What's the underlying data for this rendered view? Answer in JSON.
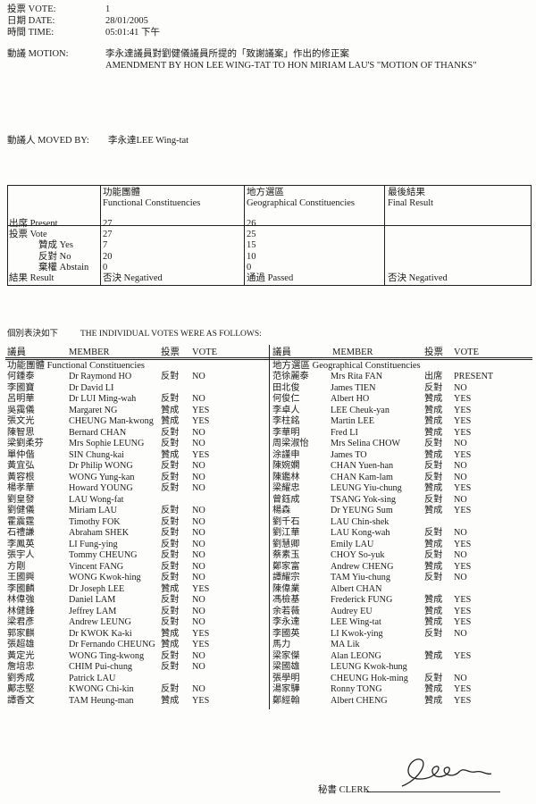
{
  "header": {
    "vote_label": "投票 VOTE:",
    "vote_value": "1",
    "date_label": "日期 DATE:",
    "date_value": "28/01/2005",
    "time_label": "時間 TIME:",
    "time_value": "05:01:41 下午",
    "motion_label": "動議 MOTION:",
    "motion_zh": "李永達議員對劉健儀議員所提的「致謝議案」作出的修正案",
    "motion_en": "AMENDMENT BY HON LEE WING-TAT TO HON MIRIAM LAU'S \"MOTION OF THANKS\"",
    "moved_by_label": "動議人 MOVED BY:",
    "moved_by_value": "李永達LEE Wing-tat"
  },
  "summary": {
    "col_fc_zh": "功能團體",
    "col_fc_en": "Functional Constituencies",
    "col_gc_zh": "地方選區",
    "col_gc_en": "Geographical Constituencies",
    "col_final_zh": "最後結果",
    "col_final_en": "Final Result",
    "row_labels": [
      "出席 Present",
      "投票 Vote",
      "贊成 Yes",
      "反對 No",
      "棄權 Abstain",
      "結果 Result"
    ],
    "fc": [
      "27",
      "27",
      "7",
      "20",
      "0",
      "否決 Negatived"
    ],
    "gc": [
      "26",
      "25",
      "15",
      "10",
      "0",
      "通過 Passed"
    ],
    "final": "否決 Negatived"
  },
  "individual": {
    "title_zh": "個別表決如下",
    "title_en": "THE INDIVIDUAL VOTES WERE AS FOLLOWS:",
    "headers": {
      "member_zh": "議員",
      "member_en": "MEMBER",
      "vote_zh": "投票",
      "vote_en": "VOTE"
    },
    "fc_section": "功能團體 Functional Constituencies",
    "gc_section": "地方選區 Geographical Constituencies",
    "fc_rows": [
      [
        "何鍾泰",
        "Dr Raymond HO",
        "反對",
        "NO"
      ],
      [
        "李國寶",
        "Dr David LI",
        "",
        ""
      ],
      [
        "呂明華",
        "Dr LUI Ming-wah",
        "反對",
        "NO"
      ],
      [
        "吳靄儀",
        "Margaret NG",
        "贊成",
        "YES"
      ],
      [
        "張文光",
        "CHEUNG Man-kwong",
        "贊成",
        "YES"
      ],
      [
        "陳智思",
        "Bernard CHAN",
        "反對",
        "NO"
      ],
      [
        "梁劉柔芬",
        "Mrs Sophie LEUNG",
        "反對",
        "NO"
      ],
      [
        "單仲偕",
        "SIN Chung-kai",
        "贊成",
        "YES"
      ],
      [
        "黃宜弘",
        "Dr Philip WONG",
        "反對",
        "NO"
      ],
      [
        "黃容根",
        "WONG Yung-kan",
        "反對",
        "NO"
      ],
      [
        "楊孝華",
        "Howard YOUNG",
        "反對",
        "NO"
      ],
      [
        "劉皇發",
        "LAU Wong-fat",
        "",
        ""
      ],
      [
        "劉健儀",
        "Miriam LAU",
        "反對",
        "NO"
      ],
      [
        "霍震霆",
        "Timothy FOK",
        "反對",
        "NO"
      ],
      [
        "石禮謙",
        "Abraham SHEK",
        "反對",
        "NO"
      ],
      [
        "李鳳英",
        "LI Fung-ying",
        "反對",
        "NO"
      ],
      [
        "張宇人",
        "Tommy CHEUNG",
        "反對",
        "NO"
      ],
      [
        "方剛",
        "Vincent FANG",
        "反對",
        "NO"
      ],
      [
        "王國興",
        "WONG Kwok-hing",
        "反對",
        "NO"
      ],
      [
        "李國麟",
        "Dr Joseph LEE",
        "贊成",
        "YES"
      ],
      [
        "林偉強",
        "Daniel LAM",
        "反對",
        "NO"
      ],
      [
        "林健鋒",
        "Jeffrey LAM",
        "反對",
        "NO"
      ],
      [
        "梁君彥",
        "Andrew LEUNG",
        "反對",
        "NO"
      ],
      [
        "郭家麒",
        "Dr KWOK Ka-ki",
        "贊成",
        "YES"
      ],
      [
        "張超雄",
        "Dr Fernando CHEUNG",
        "贊成",
        "YES"
      ],
      [
        "黃定光",
        "WONG Ting-kwong",
        "反對",
        "NO"
      ],
      [
        "詹培忠",
        "CHIM Pui-chung",
        "反對",
        "NO"
      ],
      [
        "劉秀成",
        "Patrick LAU",
        "",
        ""
      ],
      [
        "鄺志堅",
        "KWONG Chi-kin",
        "反對",
        "NO"
      ],
      [
        "譚香文",
        "TAM Heung-man",
        "贊成",
        "YES"
      ]
    ],
    "gc_rows": [
      [
        "范徐麗泰",
        "Mrs Rita FAN",
        "出席",
        "PRESENT"
      ],
      [
        "田北俊",
        "James TIEN",
        "反對",
        "NO"
      ],
      [
        "何俊仁",
        "Albert HO",
        "贊成",
        "YES"
      ],
      [
        "李卓人",
        "LEE Cheuk-yan",
        "贊成",
        "YES"
      ],
      [
        "李柱銘",
        "Martin LEE",
        "贊成",
        "YES"
      ],
      [
        "李華明",
        "Fred LI",
        "贊成",
        "YES"
      ],
      [
        "周梁淑怡",
        "Mrs Selina CHOW",
        "反對",
        "NO"
      ],
      [
        "涂謹申",
        "James TO",
        "贊成",
        "YES"
      ],
      [
        "陳婉嫻",
        "CHAN Yuen-han",
        "反對",
        "NO"
      ],
      [
        "陳鑑林",
        "CHAN Kam-lam",
        "反對",
        "NO"
      ],
      [
        "梁耀忠",
        "LEUNG Yiu-chung",
        "贊成",
        "YES"
      ],
      [
        "曾鈺成",
        "TSANG Yok-sing",
        "反對",
        "NO"
      ],
      [
        "楊森",
        "Dr YEUNG Sum",
        "贊成",
        "YES"
      ],
      [
        "劉千石",
        "LAU Chin-shek",
        "",
        ""
      ],
      [
        "劉江華",
        "LAU Kong-wah",
        "反對",
        "NO"
      ],
      [
        "劉慧卿",
        "Emily LAU",
        "贊成",
        "YES"
      ],
      [
        "蔡素玉",
        "CHOY So-yuk",
        "反對",
        "NO"
      ],
      [
        "鄭家富",
        "Andrew CHENG",
        "贊成",
        "YES"
      ],
      [
        "譚耀宗",
        "TAM Yiu-chung",
        "反對",
        "NO"
      ],
      [
        "陳偉業",
        "Albert CHAN",
        "",
        ""
      ],
      [
        "馮檢基",
        "Frederick FUNG",
        "贊成",
        "YES"
      ],
      [
        "余若薇",
        "Audrey EU",
        "贊成",
        "YES"
      ],
      [
        "李永達",
        "LEE Wing-tat",
        "贊成",
        "YES"
      ],
      [
        "李國英",
        "LI Kwok-ying",
        "反對",
        "NO"
      ],
      [
        "馬力",
        "MA Lik",
        "",
        ""
      ],
      [
        "梁家傑",
        "Alan LEONG",
        "贊成",
        "YES"
      ],
      [
        "梁國雄",
        "LEUNG Kwok-hung",
        "",
        ""
      ],
      [
        "張學明",
        "CHEUNG Hok-ming",
        "反對",
        "NO"
      ],
      [
        "湯家驊",
        "Ronny TONG",
        "贊成",
        "YES"
      ],
      [
        "鄭經翰",
        "Albert CHENG",
        "贊成",
        "YES"
      ]
    ]
  },
  "footer": {
    "clerk_label": "秘書 CLERK"
  }
}
